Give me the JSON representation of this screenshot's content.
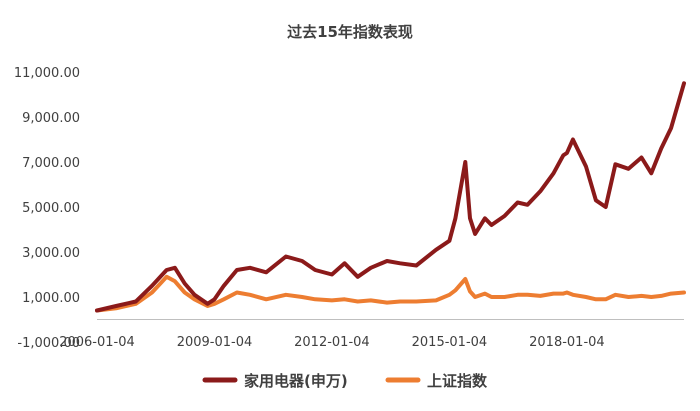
{
  "chart_data": {
    "type": "line",
    "title": "过去15年指数表现",
    "xlabel": "",
    "ylabel": "",
    "x_ticks": [
      "2006-01-04",
      "2009-01-04",
      "2012-01-04",
      "2015-01-04",
      "2018-01-04"
    ],
    "y_ticks": [
      -1000,
      1000,
      3000,
      5000,
      7000,
      9000,
      11000
    ],
    "y_tick_labels": [
      "-1,000.00",
      "1,000.00",
      "3,000.00",
      "5,000.00",
      "7,000.00",
      "9,000.00",
      "11,000.00"
    ],
    "ylim": [
      -1000,
      11000
    ],
    "xlim": [
      "2006-01-04",
      "2020-12-31"
    ],
    "grid": false,
    "legend_position": "bottom",
    "series": [
      {
        "name": "家用电器(申万)",
        "color": "#8b1a1a",
        "x": [
          "2006-01-04",
          "2006-07-01",
          "2007-01-01",
          "2007-06-01",
          "2007-10-15",
          "2008-01-01",
          "2008-04-01",
          "2008-07-01",
          "2008-11-01",
          "2009-01-04",
          "2009-04-01",
          "2009-08-01",
          "2009-12-01",
          "2010-05-01",
          "2010-11-01",
          "2011-04-01",
          "2011-08-01",
          "2012-01-04",
          "2012-05-01",
          "2012-09-01",
          "2013-01-01",
          "2013-06-01",
          "2013-10-01",
          "2014-03-01",
          "2014-09-01",
          "2015-01-04",
          "2015-03-01",
          "2015-06-01",
          "2015-07-15",
          "2015-09-01",
          "2015-12-01",
          "2016-02-01",
          "2016-06-01",
          "2016-10-01",
          "2017-01-01",
          "2017-05-01",
          "2017-09-01",
          "2017-12-01",
          "2018-01-04",
          "2018-03-01",
          "2018-07-01",
          "2018-10-01",
          "2019-01-01",
          "2019-04-01",
          "2019-08-01",
          "2019-12-01",
          "2020-03-01",
          "2020-06-01",
          "2020-09-01",
          "2020-12-31"
        ],
        "y": [
          400,
          600,
          800,
          1500,
          2200,
          2300,
          1600,
          1100,
          700,
          900,
          1500,
          2200,
          2300,
          2100,
          2800,
          2600,
          2200,
          2000,
          2500,
          1900,
          2300,
          2600,
          2500,
          2400,
          3100,
          3500,
          4500,
          7000,
          4500,
          3800,
          4500,
          4200,
          4600,
          5200,
          5100,
          5700,
          6500,
          7300,
          7400,
          8000,
          6800,
          5300,
          5000,
          6900,
          6700,
          7200,
          6500,
          7600,
          8500,
          10500
        ]
      },
      {
        "name": "上证指数",
        "color": "#ed7d31",
        "x": [
          "2006-01-04",
          "2006-07-01",
          "2007-01-01",
          "2007-06-01",
          "2007-10-15",
          "2008-01-01",
          "2008-04-01",
          "2008-07-01",
          "2008-11-01",
          "2009-01-04",
          "2009-04-01",
          "2009-08-01",
          "2009-12-01",
          "2010-05-01",
          "2010-11-01",
          "2011-04-01",
          "2011-08-01",
          "2012-01-04",
          "2012-05-01",
          "2012-09-01",
          "2013-01-01",
          "2013-06-01",
          "2013-10-01",
          "2014-03-01",
          "2014-09-01",
          "2015-01-04",
          "2015-03-01",
          "2015-06-01",
          "2015-07-15",
          "2015-09-01",
          "2015-12-01",
          "2016-02-01",
          "2016-06-01",
          "2016-10-01",
          "2017-01-01",
          "2017-05-01",
          "2017-09-01",
          "2017-12-01",
          "2018-01-04",
          "2018-03-01",
          "2018-07-01",
          "2018-10-01",
          "2019-01-01",
          "2019-04-01",
          "2019-08-01",
          "2019-12-01",
          "2020-03-01",
          "2020-06-01",
          "2020-09-01",
          "2020-12-31"
        ],
        "y": [
          400,
          500,
          700,
          1200,
          1900,
          1700,
          1200,
          900,
          600,
          700,
          900,
          1200,
          1100,
          900,
          1100,
          1000,
          900,
          850,
          900,
          800,
          850,
          750,
          800,
          800,
          850,
          1100,
          1300,
          1800,
          1250,
          1000,
          1150,
          1000,
          1000,
          1100,
          1100,
          1050,
          1150,
          1150,
          1200,
          1100,
          1000,
          900,
          900,
          1100,
          1000,
          1050,
          1000,
          1050,
          1150,
          1200
        ]
      }
    ]
  }
}
